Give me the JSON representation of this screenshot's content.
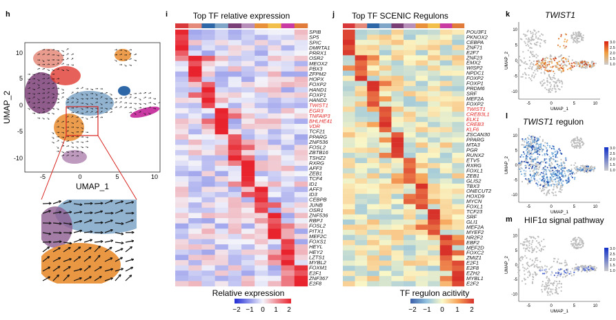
{
  "panels": {
    "h": {
      "letter": "h",
      "xlabel": "UMAP_1",
      "ylabel": "UMAP_2",
      "xticks": [
        "-5",
        "0",
        "5",
        "10"
      ],
      "yticks": [
        "10",
        "5",
        "0",
        "-5",
        "-10"
      ],
      "colors": {
        "salmon": "#e58a7a",
        "purple": "#7b3f78",
        "steel": "#7fa6c8",
        "orange": "#e9913a",
        "blue": "#2d67a8",
        "magenta": "#c93aa2",
        "red": "#e03a2f",
        "lilac": "#b78fb8"
      }
    },
    "i": {
      "letter": "i",
      "title": "Top TF relative expression",
      "genes": [
        "SPIB",
        "SP5",
        "SPIC",
        "DMRTA1",
        "PRRX1",
        "OSR2",
        "MEOX2",
        "PBX3",
        "ZFPM2",
        "HOPX",
        "FOXP2",
        "HAND1",
        "FOXP1",
        "HAND2",
        "TWIST1",
        "EGR3",
        "TNFAIP3",
        "BHLHE41",
        "VDR",
        "TCF21",
        "PPARG",
        "ZNF536",
        "FOSL2",
        "ZBTB16",
        "TSHZ2",
        "RXRG",
        "AFF3",
        "ZEB1",
        "TCF4",
        "ID1",
        "AFF3",
        "ID3",
        "CEBPB",
        "JUNB",
        "OSR1",
        "ZNF536",
        "RBPJ",
        "FOSL2",
        "PITX1",
        "MEF2C",
        "FOXS1",
        "HEYL",
        "HEY2",
        "LZTS1",
        "MYBL2",
        "FOXM1",
        "E2F1",
        "ZNF367",
        "E2F8"
      ],
      "highlighted": [
        "TWIST1",
        "EGR3",
        "TNFAIP3",
        "BHLHE41",
        "VDR"
      ],
      "legend_title": "Relative expression",
      "legend_ticks": [
        "−2",
        "−1",
        "0",
        "1",
        "2"
      ]
    },
    "j": {
      "letter": "j",
      "title": "Top TF SCENIC Regulons",
      "genes": [
        "POU3F1",
        "PKNOX2",
        "CEBPA",
        "ZNF71",
        "E2F7",
        "ZNF23",
        "EMX2",
        "WISP2",
        "NPDC1",
        "FOXP2",
        "FOXP1",
        "PRDM6",
        "SRF",
        "MEF2A",
        "FOXP2",
        "TWIST1",
        "CREB3L1",
        "ELK1",
        "CREB3",
        "KLF6",
        "ZSCAN30",
        "PPARG",
        "MTA3",
        "PGR",
        "RUNX2",
        "ETV5",
        "RXRG",
        "FOXL1",
        "ZEB1",
        "GLIS2",
        "TBX3",
        "ONECUT2",
        "HOXD9",
        "MYCN",
        "FOXL1",
        "TCF23",
        "SRF",
        "GLI1",
        "MEF2A",
        "MYEF2",
        "NR2F2",
        "EBF2",
        "MEF2D",
        "FOXC2",
        "ZMIZ1",
        "E2F1",
        "E2F8",
        "EZH2",
        "MYBL1",
        "E2F2"
      ],
      "highlighted": [
        "TWIST1",
        "CREB3L1",
        "ELK1",
        "CREB3",
        "KLF6"
      ],
      "legend_title": "TF regulon acitivity",
      "legend_ticks": [
        "−2",
        "−1",
        "0",
        "1",
        "2"
      ]
    },
    "k": {
      "letter": "k",
      "title": "TWIST1",
      "xlabel": "UMAP_1",
      "ylabel": "UMAP_2",
      "xticks": [
        "-5",
        "0",
        "5",
        "10"
      ],
      "yticks": [
        "10",
        "5",
        "0",
        "-5",
        "-10"
      ],
      "legend_ticks": [
        "3.0",
        "2.5",
        "2.0",
        "1.5",
        "1.0"
      ]
    },
    "l": {
      "letter": "l",
      "title_italic": "TWIST1",
      "title_rest": "regulon",
      "xlabel": "UMAP_1",
      "ylabel": "UMAP_2",
      "xticks": [
        "-5",
        "0",
        "5",
        "10"
      ],
      "yticks": [
        "10",
        "5",
        "0",
        "-5",
        "-10"
      ],
      "legend_ticks": [
        "3.0",
        "2.5",
        "2.0",
        "1.5",
        "1.0"
      ]
    },
    "m": {
      "letter": "m",
      "title": "HIF1α  signal pathway",
      "xlabel": "UMAP_1",
      "ylabel": "UMAP_2",
      "xticks": [
        "-5",
        "0",
        "5",
        "10"
      ],
      "yticks": [
        "10",
        "5",
        "0",
        "-5",
        "-10"
      ],
      "legend_ticks": [
        "3.0",
        "2.5",
        "2.0",
        "1.5",
        "1.0"
      ]
    }
  },
  "cluster_colors": [
    "#d9383a",
    "#e58a7a",
    "#2d67a8",
    "#7fa6c8",
    "#7b3f78",
    "#b78fb8",
    "#e9913a",
    "#f2c04a",
    "#c93aa2",
    "#e07b3a"
  ]
}
